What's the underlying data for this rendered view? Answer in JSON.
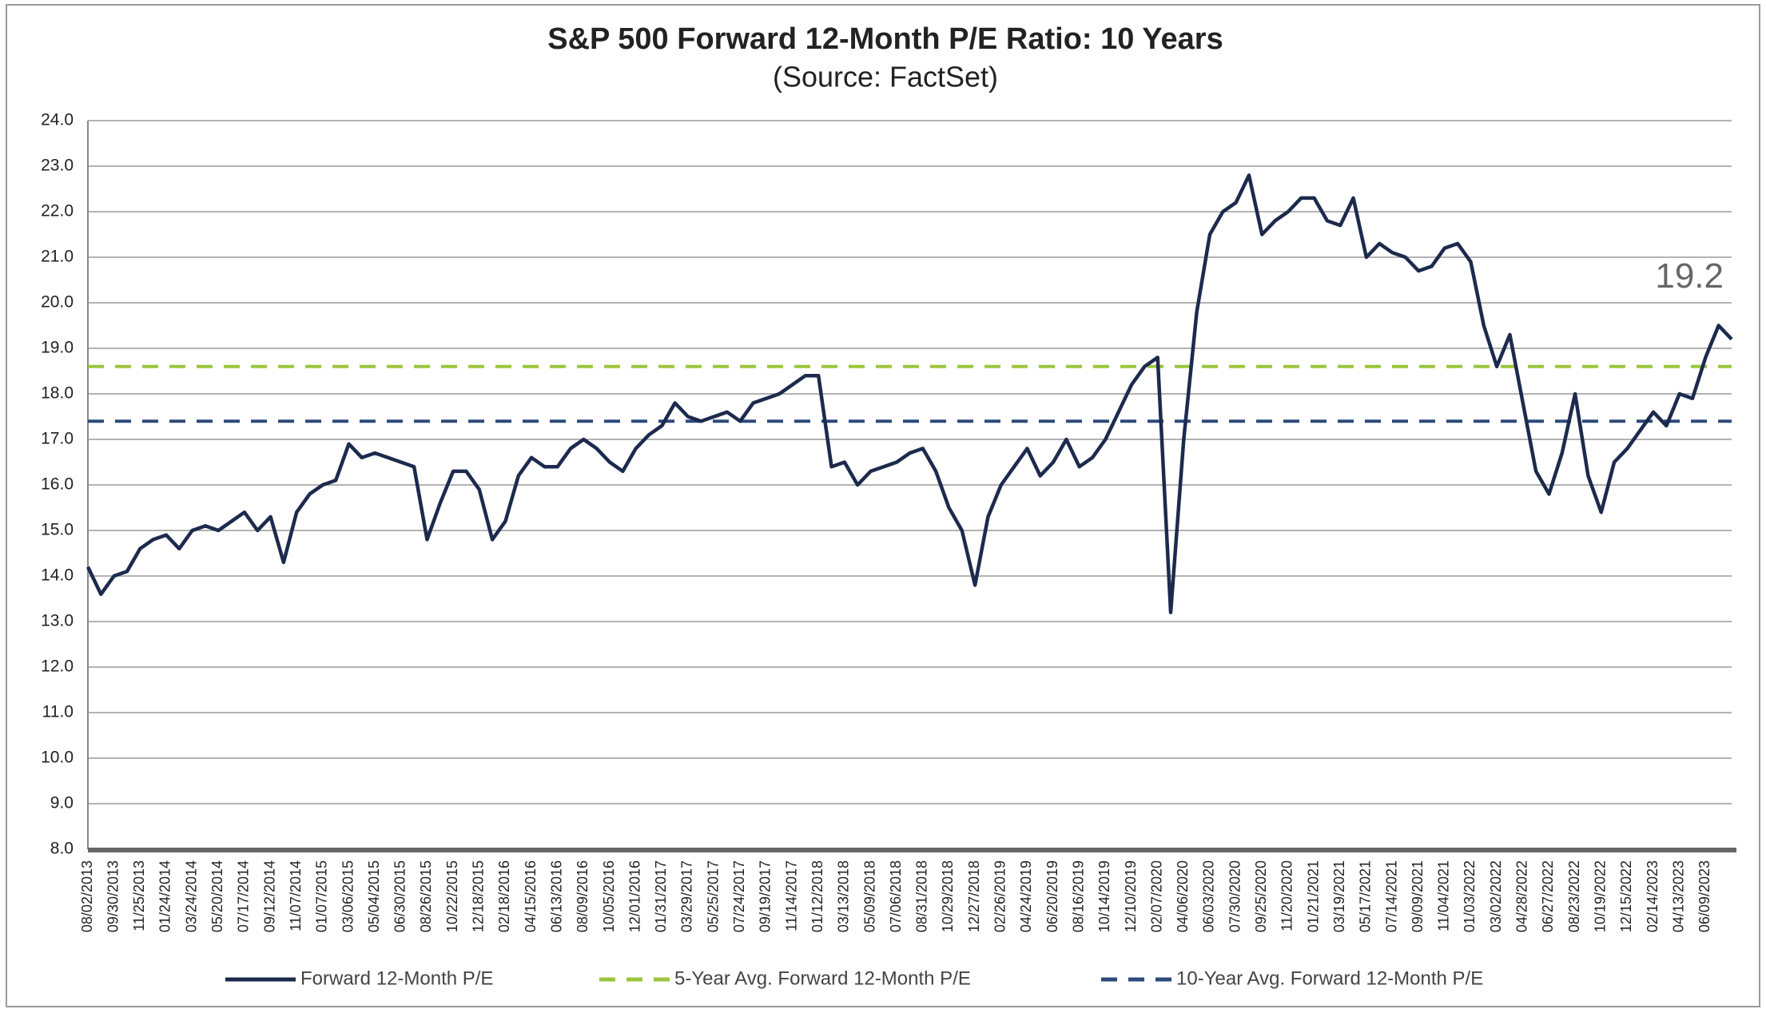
{
  "chart_data": {
    "type": "line",
    "title": "S&P 500 Forward 12-Month P/E Ratio: 10 Years",
    "subtitle": "(Source: FactSet)",
    "categories": [
      "08/02/2013",
      null,
      "09/30/2013",
      null,
      "11/25/2013",
      null,
      "01/24/2014",
      null,
      "03/24/2014",
      null,
      "05/20/2014",
      null,
      "07/17/2014",
      null,
      "09/12/2014",
      null,
      "11/07/2014",
      null,
      "01/07/2015",
      null,
      "03/06/2015",
      null,
      "05/04/2015",
      null,
      "06/30/2015",
      null,
      "08/26/2015",
      null,
      "10/22/2015",
      null,
      "12/18/2015",
      null,
      "02/18/2016",
      null,
      "04/15/2016",
      null,
      "06/13/2016",
      null,
      "08/09/2016",
      null,
      "10/05/2016",
      null,
      "12/01/2016",
      null,
      "01/31/2017",
      null,
      "03/29/2017",
      null,
      "05/25/2017",
      null,
      "07/24/2017",
      null,
      "09/19/2017",
      null,
      "11/14/2017",
      null,
      "01/12/2018",
      null,
      "03/13/2018",
      null,
      "05/09/2018",
      null,
      "07/06/2018",
      null,
      "08/31/2018",
      null,
      "10/29/2018",
      null,
      "12/27/2018",
      null,
      "02/26/2019",
      null,
      "04/24/2019",
      null,
      "06/20/2019",
      null,
      "08/16/2019",
      null,
      "10/14/2019",
      null,
      "12/10/2019",
      null,
      "02/07/2020",
      null,
      "04/06/2020",
      null,
      "06/03/2020",
      null,
      "07/30/2020",
      null,
      "09/25/2020",
      null,
      "11/20/2020",
      null,
      "01/21/2021",
      null,
      "03/19/2021",
      null,
      "05/17/2021",
      null,
      "07/14/2021",
      null,
      "09/09/2021",
      null,
      "11/04/2021",
      null,
      "01/03/2022",
      null,
      "03/02/2022",
      null,
      "04/28/2022",
      null,
      "06/27/2022",
      null,
      "08/23/2022",
      null,
      "10/19/2022",
      null,
      "12/15/2022",
      null,
      "02/14/2023",
      null,
      "04/13/2023",
      null,
      "06/09/2023",
      null,
      null
    ],
    "series": [
      {
        "name": "Forward 12-Month P/E",
        "color": "#1c2a4d",
        "values": [
          14.2,
          13.6,
          14.0,
          14.1,
          14.6,
          14.8,
          14.9,
          14.6,
          15.0,
          15.1,
          15.0,
          15.2,
          15.4,
          15.0,
          15.3,
          14.3,
          15.4,
          15.8,
          16.0,
          16.1,
          16.9,
          16.6,
          16.7,
          16.6,
          16.5,
          16.4,
          14.8,
          15.6,
          16.3,
          16.3,
          15.9,
          14.8,
          15.2,
          16.2,
          16.6,
          16.4,
          16.4,
          16.8,
          17.0,
          16.8,
          16.5,
          16.3,
          16.8,
          17.1,
          17.3,
          17.8,
          17.5,
          17.4,
          17.5,
          17.6,
          17.4,
          17.8,
          17.9,
          18.0,
          18.2,
          18.4,
          18.4,
          16.4,
          16.5,
          16.0,
          16.3,
          16.4,
          16.5,
          16.7,
          16.8,
          16.3,
          15.5,
          15.0,
          13.8,
          15.3,
          16.0,
          16.4,
          16.8,
          16.2,
          16.5,
          17.0,
          16.4,
          16.6,
          17.0,
          17.6,
          18.2,
          18.6,
          18.8,
          13.2,
          17.0,
          19.8,
          21.5,
          22.0,
          22.2,
          22.8,
          21.5,
          21.8,
          22.0,
          22.3,
          22.3,
          21.8,
          21.7,
          22.3,
          21.0,
          21.3,
          21.1,
          21.0,
          20.7,
          20.8,
          21.2,
          21.3,
          20.9,
          19.5,
          18.6,
          19.3,
          17.8,
          16.3,
          15.8,
          16.7,
          18.0,
          16.2,
          15.4,
          16.5,
          16.8,
          17.2,
          17.6,
          17.3,
          18.0,
          17.9,
          18.8,
          19.5,
          19.2
        ]
      }
    ],
    "reference_lines": [
      {
        "name": "5-Year Avg. Forward 12-Month P/E",
        "color": "#9bc53d",
        "value": 18.6
      },
      {
        "name": "10-Year Avg. Forward 12-Month P/E",
        "color": "#2d4a7c",
        "value": 17.4
      }
    ],
    "ylim": [
      8,
      24
    ],
    "yticks": [
      {
        "value": 8,
        "label": "8.0"
      },
      {
        "value": 9,
        "label": "9.0"
      },
      {
        "value": 10,
        "label": "10.0"
      },
      {
        "value": 11,
        "label": "11.0"
      },
      {
        "value": 12,
        "label": "12.0"
      },
      {
        "value": 13,
        "label": "13.0"
      },
      {
        "value": 14,
        "label": "14.0"
      },
      {
        "value": 15,
        "label": "15.0"
      },
      {
        "value": 16,
        "label": "16.0"
      },
      {
        "value": 17,
        "label": "17.0"
      },
      {
        "value": 18,
        "label": "18.0"
      },
      {
        "value": 19,
        "label": "19.0"
      },
      {
        "value": 20,
        "label": "20.0"
      },
      {
        "value": 21,
        "label": "21.0"
      },
      {
        "value": 22,
        "label": "22.0"
      },
      {
        "value": 23,
        "label": "23.0"
      },
      {
        "value": 24,
        "label": "24.0"
      }
    ],
    "grid": true,
    "legend": "bottom"
  }
}
